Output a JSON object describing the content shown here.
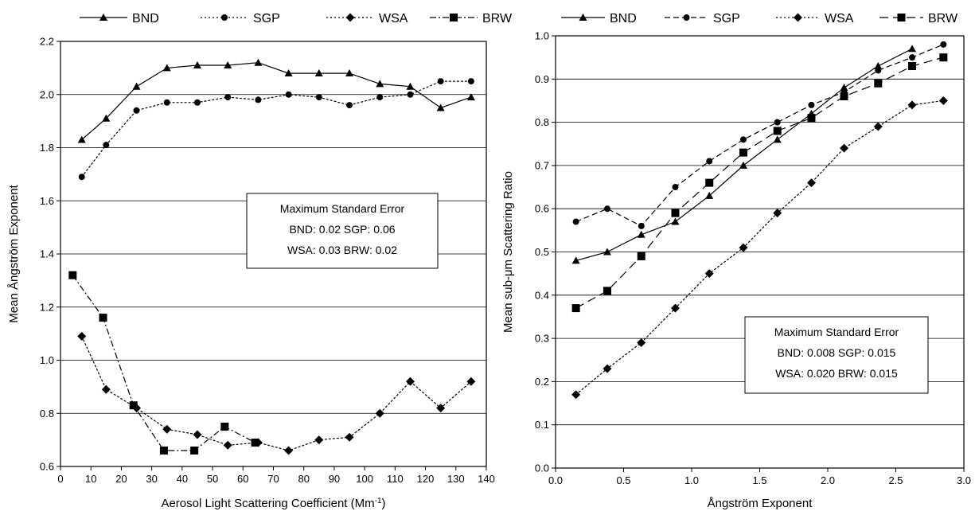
{
  "chart_data": [
    {
      "type": "line",
      "xlabel": "Aerosol Light Scattering Coefficient (Mm",
      "xlabel_sup": "-1",
      "xlabel_tail": ")",
      "ylabel": "Mean Ångström Exponent",
      "xlim": [
        0,
        140
      ],
      "ylim": [
        0.6,
        2.2
      ],
      "xticks": [
        "0",
        "10",
        "20",
        "30",
        "40",
        "50",
        "60",
        "70",
        "80",
        "90",
        "100",
        "110",
        "120",
        "130",
        "140"
      ],
      "yticks": [
        "0.6",
        "0.8",
        "1.0",
        "1.2",
        "1.4",
        "1.6",
        "1.8",
        "2.0",
        "2.2"
      ],
      "grid": "horizontal",
      "legend": "top",
      "series": [
        {
          "name": "BND",
          "marker": "triangle",
          "dash": "solid",
          "x": [
            7,
            15,
            25,
            35,
            45,
            55,
            65,
            75,
            85,
            95,
            105,
            115,
            125,
            135
          ],
          "y": [
            1.83,
            1.91,
            2.03,
            2.1,
            2.11,
            2.11,
            2.12,
            2.08,
            2.08,
            2.08,
            2.04,
            2.03,
            1.95,
            1.99
          ]
        },
        {
          "name": "SGP",
          "marker": "circle",
          "dash": "dotted",
          "x": [
            7,
            15,
            25,
            35,
            45,
            55,
            65,
            75,
            85,
            95,
            105,
            115,
            125,
            135
          ],
          "y": [
            1.69,
            1.81,
            1.94,
            1.97,
            1.97,
            1.99,
            1.98,
            2.0,
            1.99,
            1.96,
            1.99,
            2.0,
            2.05,
            2.05
          ]
        },
        {
          "name": "WSA",
          "marker": "diamond",
          "dash": "dotted",
          "x": [
            7,
            15,
            25,
            35,
            45,
            55,
            65,
            75,
            85,
            95,
            105,
            115,
            125,
            135
          ],
          "y": [
            1.09,
            0.89,
            0.82,
            0.74,
            0.72,
            0.68,
            0.69,
            0.66,
            0.7,
            0.71,
            0.8,
            0.92,
            0.82,
            0.92
          ]
        },
        {
          "name": "BRW",
          "marker": "square",
          "dash": "dashdot",
          "x": [
            4,
            14,
            24,
            34,
            44,
            54,
            64
          ],
          "y": [
            1.32,
            1.16,
            0.83,
            0.66,
            0.66,
            0.75,
            0.69
          ]
        }
      ],
      "annotation": {
        "title": "Maximum Standard Error",
        "line1": "BND: 0.02   SGP: 0.06",
        "line2": "WSA: 0.03   BRW: 0.02"
      }
    },
    {
      "type": "line",
      "xlabel": "Ångström Exponent",
      "ylabel": "Mean sub-μm Scattering Ratio",
      "xlim": [
        0,
        3
      ],
      "ylim": [
        0,
        1
      ],
      "xticks": [
        "0.0",
        "0.5",
        "1.0",
        "1.5",
        "2.0",
        "2.5",
        "3.0"
      ],
      "yticks": [
        "0.0",
        "0.1",
        "0.2",
        "0.3",
        "0.4",
        "0.5",
        "0.6",
        "0.7",
        "0.8",
        "0.9",
        "1.0"
      ],
      "grid": "horizontal",
      "legend": "top",
      "series": [
        {
          "name": "BND",
          "marker": "triangle",
          "dash": "solid",
          "x": [
            0.15,
            0.38,
            0.63,
            0.88,
            1.13,
            1.38,
            1.63,
            1.88,
            2.12,
            2.37,
            2.62
          ],
          "y": [
            0.48,
            0.5,
            0.54,
            0.57,
            0.63,
            0.7,
            0.76,
            0.82,
            0.88,
            0.93,
            0.97
          ]
        },
        {
          "name": "SGP",
          "marker": "circle",
          "dash": "dashed",
          "x": [
            0.15,
            0.38,
            0.63,
            0.88,
            1.13,
            1.38,
            1.63,
            1.88,
            2.12,
            2.37,
            2.62,
            2.85
          ],
          "y": [
            0.57,
            0.6,
            0.56,
            0.65,
            0.71,
            0.76,
            0.8,
            0.84,
            0.87,
            0.92,
            0.95,
            0.98
          ]
        },
        {
          "name": "WSA",
          "marker": "diamond",
          "dash": "dotted",
          "x": [
            0.15,
            0.38,
            0.63,
            0.88,
            1.13,
            1.38,
            1.63,
            1.88,
            2.12,
            2.37,
            2.62,
            2.85
          ],
          "y": [
            0.17,
            0.23,
            0.29,
            0.37,
            0.45,
            0.51,
            0.59,
            0.66,
            0.74,
            0.79,
            0.84,
            0.85
          ]
        },
        {
          "name": "BRW",
          "marker": "square",
          "dash": "longdash",
          "x": [
            0.15,
            0.38,
            0.63,
            0.88,
            1.13,
            1.38,
            1.63,
            1.88,
            2.12,
            2.37,
            2.62,
            2.85
          ],
          "y": [
            0.37,
            0.41,
            0.49,
            0.59,
            0.66,
            0.73,
            0.78,
            0.81,
            0.86,
            0.89,
            0.93,
            0.95
          ]
        }
      ],
      "annotation": {
        "title": "Maximum Standard Error",
        "line1": "BND: 0.008   SGP: 0.015",
        "line2": "WSA: 0.020   BRW: 0.015"
      }
    }
  ]
}
